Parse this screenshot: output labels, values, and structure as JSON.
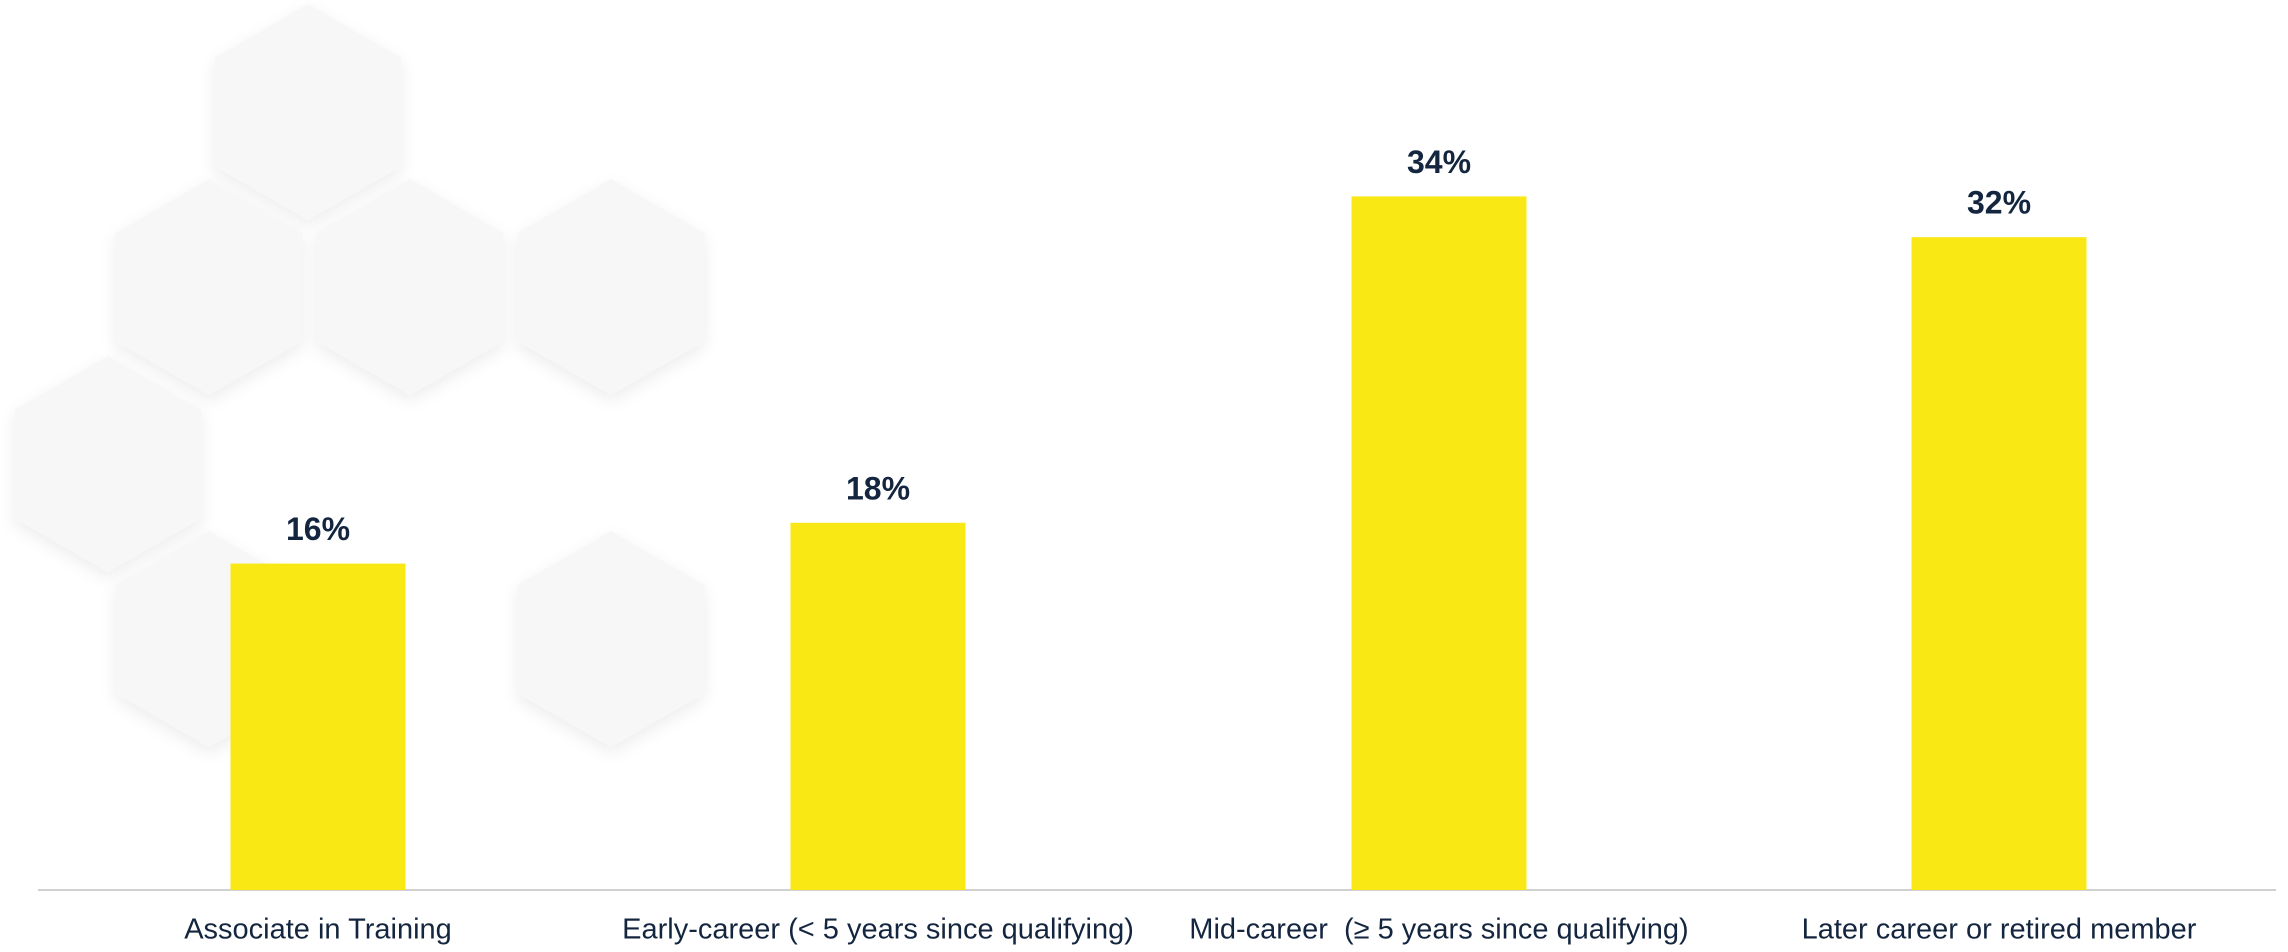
{
  "chart_data": {
    "type": "bar",
    "categories": [
      "Associate in Training",
      "Early-career (< 5 years since qualifying)",
      "Mid-career  (≥ 5 years since qualifying)",
      "Later career or retired member"
    ],
    "values": [
      16,
      18,
      34,
      32
    ],
    "value_labels": [
      "16%",
      "18%",
      "34%",
      "32%"
    ],
    "color": "#f9e814"
  }
}
